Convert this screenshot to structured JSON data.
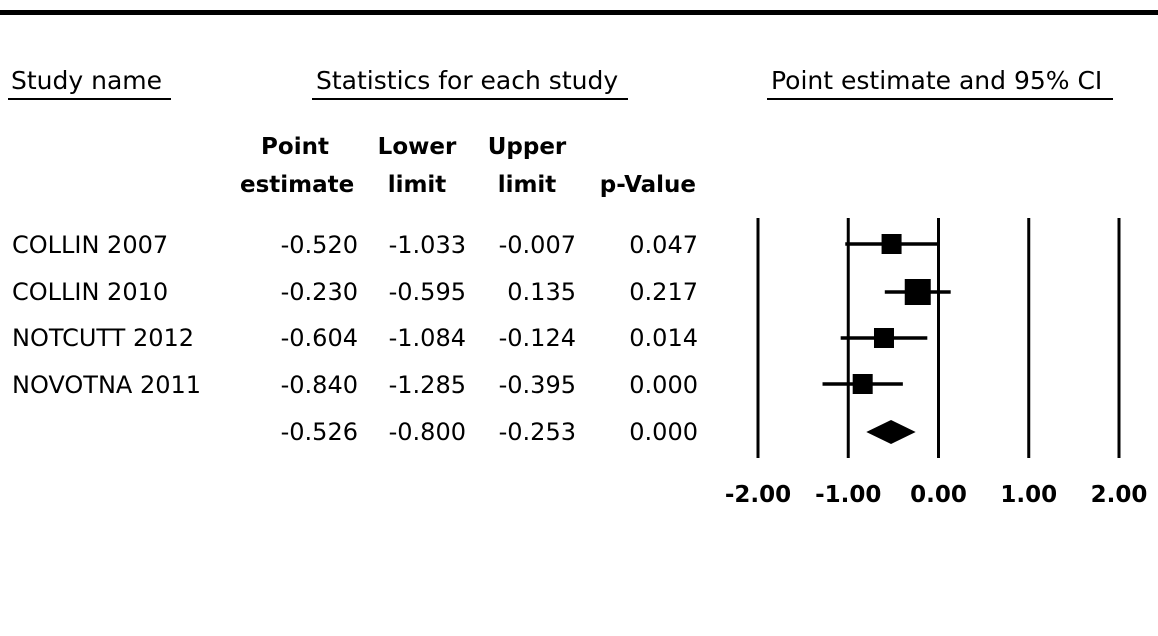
{
  "headers": {
    "study_name": "Study name",
    "statistics": "Statistics for each study",
    "plot": "Point estimate and 95% CI"
  },
  "columns": {
    "point_estimate": [
      "Point",
      "estimate"
    ],
    "lower_limit": [
      "Lower",
      "limit"
    ],
    "upper_limit": [
      "Upper",
      "limit"
    ],
    "p_value": "p-Value"
  },
  "rows": [
    {
      "study": "COLLIN 2007",
      "point": "-0.520",
      "lower": "-1.033",
      "upper": "-0.007",
      "p": "0.047"
    },
    {
      "study": "COLLIN 2010",
      "point": "-0.230",
      "lower": "-0.595",
      "upper": "0.135",
      "p": "0.217"
    },
    {
      "study": "NOTCUTT 2012",
      "point": "-0.604",
      "lower": "-1.084",
      "upper": "-0.124",
      "p": "0.014"
    },
    {
      "study": "NOVOTNA 2011",
      "point": "-0.840",
      "lower": "-1.285",
      "upper": "-0.395",
      "p": "0.000"
    },
    {
      "study": "",
      "point": "-0.526",
      "lower": "-0.800",
      "upper": "-0.253",
      "p": "0.000"
    }
  ],
  "chart_data": {
    "type": "forest",
    "xlim": [
      -2.0,
      2.0
    ],
    "xticks": [
      "-2.00",
      "-1.00",
      "0.00",
      "1.00",
      "2.00"
    ],
    "studies": [
      {
        "name": "COLLIN 2007",
        "estimate": -0.52,
        "lower": -1.033,
        "upper": -0.007,
        "weight": "medium"
      },
      {
        "name": "COLLIN 2010",
        "estimate": -0.23,
        "lower": -0.595,
        "upper": 0.135,
        "weight": "large"
      },
      {
        "name": "NOTCUTT 2012",
        "estimate": -0.604,
        "lower": -1.084,
        "upper": -0.124,
        "weight": "medium"
      },
      {
        "name": "NOVOTNA 2011",
        "estimate": -0.84,
        "lower": -1.285,
        "upper": -0.395,
        "weight": "medium"
      }
    ],
    "summary": {
      "estimate": -0.526,
      "lower": -0.8,
      "upper": -0.253
    }
  }
}
